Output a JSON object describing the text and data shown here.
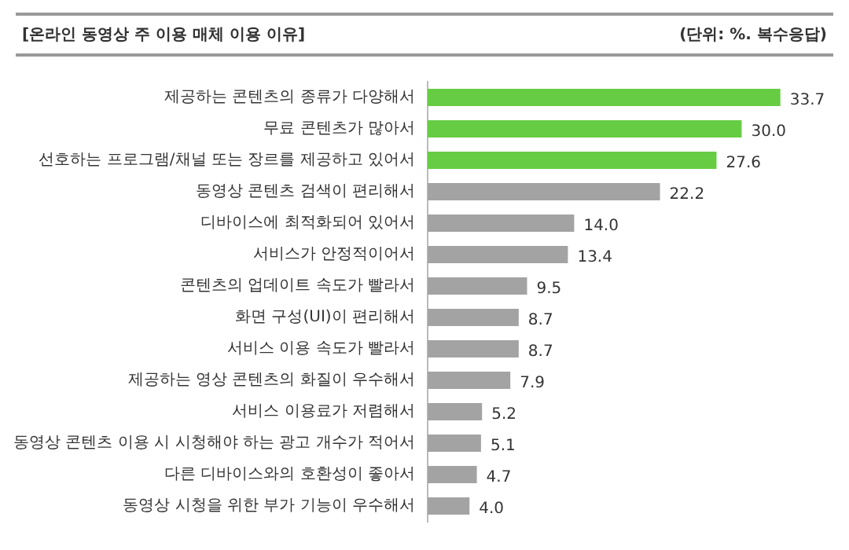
{
  "chart_data": {
    "type": "bar",
    "orientation": "horizontal",
    "title": "[온라인 동영상 주 이용 매체 이용 이유]",
    "subtitle": "(단위: %. 복수응답)",
    "categories": [
      "제공하는 콘텐츠의 종류가 다양해서",
      "무료 콘텐츠가 많아서",
      "선호하는 프로그램/채널 또는 장르를 제공하고 있어서",
      "동영상 콘텐츠 검색이 편리해서",
      "디바이스에 최적화되어 있어서",
      "서비스가 안정적이어서",
      "콘텐츠의 업데이트 속도가 빨라서",
      "화면 구성(UI)이 편리해서",
      "서비스 이용 속도가 빨라서",
      "제공하는 영상 콘텐츠의 화질이 우수해서",
      "서비스 이용료가 저렴해서",
      "동영상 콘텐츠 이용 시 시청해야 하는 광고 개수가 적어서",
      "다른 디바이스와의 호환성이 좋아서",
      "동영상 시청을 위한 부가 기능이 우수해서"
    ],
    "values": [
      33.7,
      30.0,
      27.6,
      22.2,
      14.0,
      13.4,
      9.5,
      8.7,
      8.7,
      7.9,
      5.2,
      5.1,
      4.7,
      4.0
    ],
    "value_labels": [
      "33.7",
      "30.0",
      "27.6",
      "22.2",
      "14.0",
      "13.4",
      "9.5",
      "8.7",
      "8.7",
      "7.9",
      "5.2",
      "5.1",
      "4.7",
      "4.0"
    ],
    "colors": [
      "#66cc44",
      "#66cc44",
      "#66cc44",
      "#a3a3a3",
      "#a3a3a3",
      "#a3a3a3",
      "#a3a3a3",
      "#a3a3a3",
      "#a3a3a3",
      "#a3a3a3",
      "#a3a3a3",
      "#a3a3a3",
      "#a3a3a3",
      "#a3a3a3"
    ],
    "grid": false,
    "legend": false,
    "tick_labels": "y"
  }
}
